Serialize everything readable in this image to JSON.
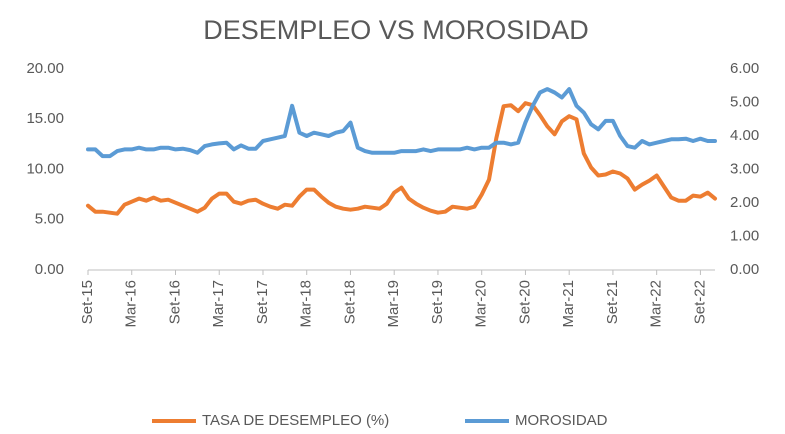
{
  "chart_data": {
    "type": "line",
    "title": "DESEMPLEO VS MOROSIDAD",
    "categories": [
      "Set-15",
      null,
      null,
      null,
      null,
      null,
      "Mar-16",
      null,
      null,
      null,
      null,
      null,
      "Set-16",
      null,
      null,
      null,
      null,
      null,
      "Mar-17",
      null,
      null,
      null,
      null,
      null,
      "Set-17",
      null,
      null,
      null,
      null,
      null,
      "Mar-18",
      null,
      null,
      null,
      null,
      null,
      "Set-18",
      null,
      null,
      null,
      null,
      null,
      "Mar-19",
      null,
      null,
      null,
      null,
      null,
      "Set-19",
      null,
      null,
      null,
      null,
      null,
      "Mar-20",
      null,
      null,
      null,
      null,
      null,
      "Set-20",
      null,
      null,
      null,
      null,
      null,
      "Mar-21",
      null,
      null,
      null,
      null,
      null,
      "Set-21",
      null,
      null,
      null,
      null,
      null,
      "Mar-22",
      null,
      null,
      null,
      null,
      null,
      "Set-22",
      null,
      null
    ],
    "series": [
      {
        "name": "TASA DE DESEMPLEO (%)",
        "color": "#ed7d31",
        "values": [
          6.4,
          5.8,
          5.8,
          5.7,
          5.6,
          6.5,
          6.8,
          7.1,
          6.9,
          7.2,
          6.9,
          7.0,
          6.7,
          6.4,
          6.1,
          5.8,
          6.2,
          7.1,
          7.6,
          7.6,
          6.8,
          6.6,
          6.9,
          7.0,
          6.6,
          6.3,
          6.1,
          6.5,
          6.4,
          7.3,
          8.0,
          8.0,
          7.3,
          6.7,
          6.3,
          6.1,
          6.0,
          6.1,
          6.3,
          6.2,
          6.1,
          6.6,
          7.7,
          8.2,
          7.1,
          6.6,
          6.2,
          5.9,
          5.7,
          5.8,
          6.3,
          6.2,
          6.1,
          6.3,
          7.5,
          9.0,
          13.1,
          16.3,
          16.4,
          15.8,
          16.6,
          16.4,
          15.4,
          14.3,
          13.5,
          14.8,
          15.3,
          15.0,
          11.6,
          10.2,
          9.4,
          9.5,
          9.8,
          9.6,
          9.1,
          8.0,
          8.5,
          8.9,
          9.4,
          8.3,
          7.2,
          6.9,
          6.9,
          7.4,
          7.3,
          7.7,
          7.1
        ]
      },
      {
        "name": "MOROSIDAD",
        "color": "#5b9bd5",
        "axis": "y2",
        "values": [
          3.6,
          3.6,
          3.4,
          3.4,
          3.55,
          3.6,
          3.6,
          3.65,
          3.6,
          3.6,
          3.65,
          3.65,
          3.6,
          3.62,
          3.58,
          3.5,
          3.7,
          3.75,
          3.78,
          3.8,
          3.6,
          3.72,
          3.62,
          3.62,
          3.85,
          3.9,
          3.95,
          4.0,
          4.9,
          4.1,
          4.0,
          4.1,
          4.05,
          4.0,
          4.1,
          4.15,
          4.4,
          3.65,
          3.55,
          3.5,
          3.5,
          3.5,
          3.5,
          3.55,
          3.55,
          3.55,
          3.6,
          3.55,
          3.6,
          3.6,
          3.6,
          3.6,
          3.65,
          3.6,
          3.65,
          3.65,
          3.8,
          3.8,
          3.75,
          3.8,
          4.4,
          4.9,
          5.3,
          5.4,
          5.3,
          5.15,
          5.4,
          4.9,
          4.7,
          4.35,
          4.2,
          4.45,
          4.45,
          4.0,
          3.7,
          3.65,
          3.85,
          3.75,
          3.8,
          3.85,
          3.9,
          3.9,
          3.92,
          3.85,
          3.92,
          3.85,
          3.85
        ]
      }
    ],
    "ylim": [
      0,
      20
    ],
    "yticks": [
      {
        "value": 0,
        "label": "0.00"
      },
      {
        "value": 5,
        "label": "5.00"
      },
      {
        "value": 10,
        "label": "10.00"
      },
      {
        "value": 15,
        "label": "15.00"
      },
      {
        "value": 20,
        "label": "20.00"
      }
    ],
    "y2lim": [
      0,
      6
    ],
    "y2ticks": [
      {
        "value": 0,
        "label": "0.00"
      },
      {
        "value": 1,
        "label": "1.00"
      },
      {
        "value": 2,
        "label": "2.00"
      },
      {
        "value": 3,
        "label": "3.00"
      },
      {
        "value": 4,
        "label": "4.00"
      },
      {
        "value": 5,
        "label": "5.00"
      },
      {
        "value": 6,
        "label": "6.00"
      }
    ],
    "legend": "bottom"
  }
}
